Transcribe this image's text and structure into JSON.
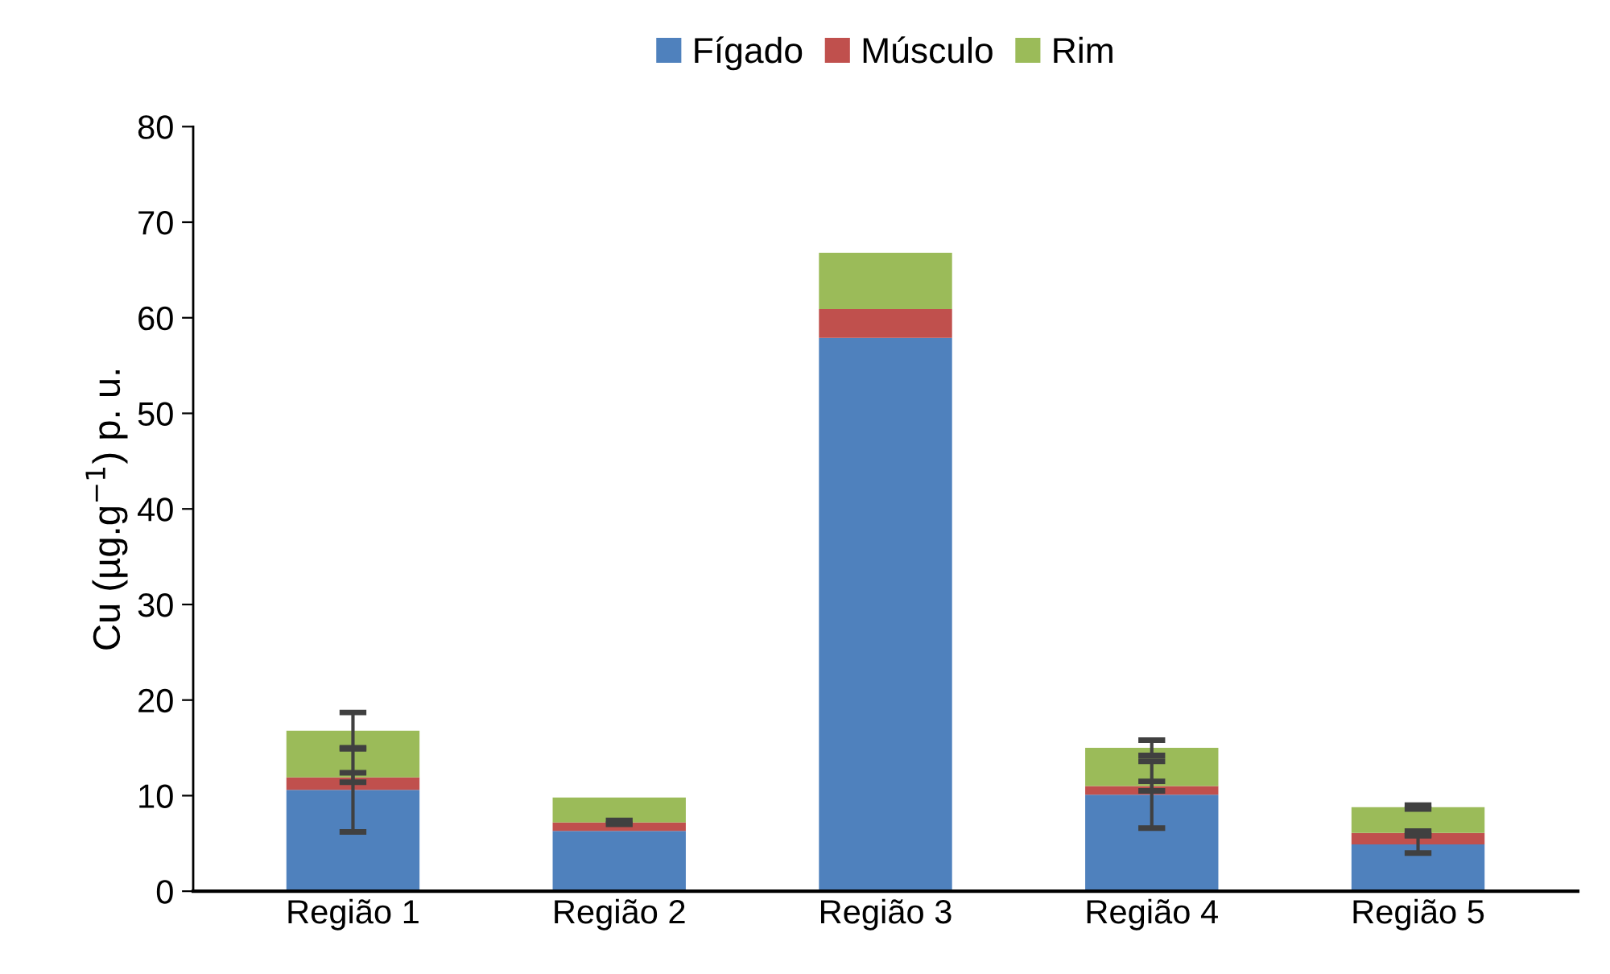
{
  "chart_data": {
    "type": "bar",
    "stacked": true,
    "ylabel": "Cu (µg.g$^{−1}$) p. u.",
    "categories": [
      "Região 1",
      "Região 2",
      "Região 3",
      "Região 4",
      "Região 5"
    ],
    "series": [
      {
        "name": "Fígado",
        "color": "#4f81bd",
        "values": [
          10.6,
          6.3,
          57.9,
          10.1,
          4.9
        ],
        "errors": [
          4.4,
          null,
          null,
          3.5,
          0.9
        ]
      },
      {
        "name": "Músculo",
        "color": "#c0504d",
        "values": [
          1.3,
          0.9,
          3.0,
          0.9,
          1.2
        ],
        "errors": [
          0.5,
          0.2,
          null,
          0.5,
          0.2
        ]
      },
      {
        "name": "Rim",
        "color": "#9bbb59",
        "values": [
          4.9,
          2.6,
          5.9,
          4.0,
          2.7
        ],
        "errors": [
          1.9,
          null,
          null,
          0.8,
          0.2
        ]
      }
    ],
    "ylim": [
      0,
      80
    ],
    "yticks": [
      0,
      10,
      20,
      30,
      40,
      50,
      60,
      70,
      80
    ],
    "grid": false,
    "legend": "top"
  }
}
